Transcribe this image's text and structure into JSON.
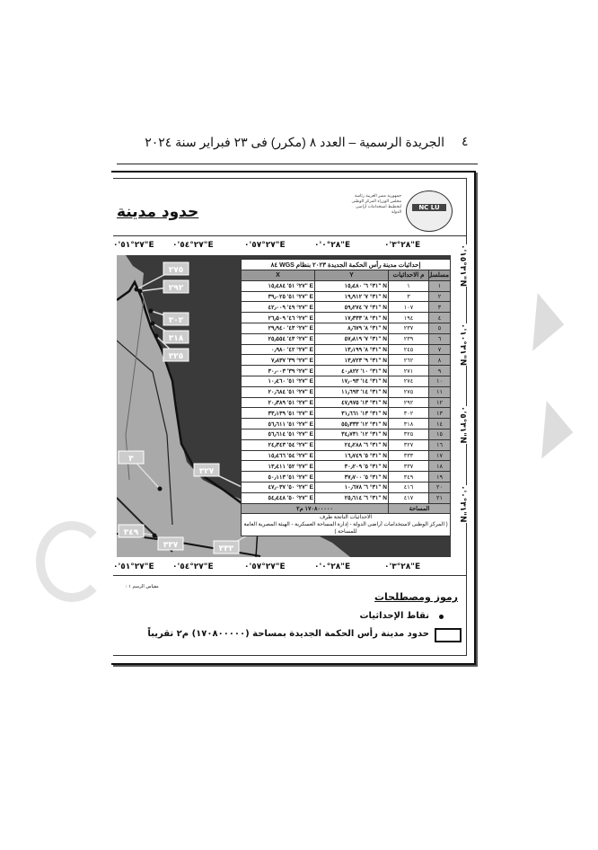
{
  "header": {
    "page_number": "٤",
    "title": "الجريدة الرسمية – العدد ٨ (مكرر) فى ٢٣ فبراير سنة ٢٠٢٤"
  },
  "map": {
    "title": "حدود مدينة",
    "agency_text": "جمهورية مصر العربية رئاسة مجلس الوزراء المركز الوطنى لتخطيط استخدامات أراضى الدولة",
    "logo_text": "NC LU",
    "longitude_labels": [
      "٢٧°٥١'٠\"E",
      "٢٧°٥٤'٠\"E",
      "٢٧°٥٧'٠\"E",
      "٢٨°٠'٠\"E",
      "٢٨°٣'٠\"E"
    ],
    "latitude_labels": [
      "٣١°١٥'٠\"N",
      "٣١°١٠'٠\"N",
      "٣١°٥'٠\"N",
      "٣١°٠'٠\"N"
    ],
    "point_labels": [
      "٢٧٥",
      "٢٩٢",
      "٣٠٢",
      "٣١٨",
      "٣٢٥",
      "٣",
      "٣٢٧",
      "٣٤٩",
      "٣٣٧",
      "٣٣٣"
    ],
    "colors": {
      "sea": "#3a3a3a",
      "land": "#a9a9a9",
      "boundary": "#111111"
    }
  },
  "table": {
    "caption": "إحداثيات مدينة رأس الحكمة الجديدة ٢٠٢٣ بنظام WGS ٨٤",
    "headers": [
      "مسلسل",
      "م الاحداثيات",
      "Y",
      "X"
    ],
    "rows": [
      [
        "١",
        "١",
        "٣١° ٦' ١٥٫٤٨٠\" N",
        "٢٧° ٥١' ١٥٫٤٨٤\" E"
      ],
      [
        "٢",
        "٣",
        "٣١° ٧' ١٩٫٩١٢\" N",
        "٢٧° ٥١' ٣٩٫٠٢٥\" E"
      ],
      [
        "٣",
        "١٠٧",
        "٣١° ٧' ٥٩٫٢٧٤\" N",
        "٢٧° ٤٩' ٤٢٫٠٠٩\" E"
      ],
      [
        "٤",
        "١٩٤",
        "٣١° ٨' ١٧٫٣٣٣\" N",
        "٢٧° ٤٦' ٢٦٫٥٠٩\" E"
      ],
      [
        "٥",
        "٢٣٧",
        "٣١° ٨' ٨٫٦٧٩\" N",
        "٢٧° ٤٣' ٢٩٫٩٤٠\" E"
      ],
      [
        "٦",
        "٢٣٩",
        "٣١° ٧' ٥٧٫٨١٩\" N",
        "٢٧° ٤٣' ٢٥٫٥٥٤\" E"
      ],
      [
        "٧",
        "٢٤٥",
        "٣١° ٨' ١٣٫١٩٩\" N",
        "٢٧° ٤٢' ٠٫٩٨٠\" E"
      ],
      [
        "٨",
        "٢٦٢",
        "٣١° ٩' ١٣٫٧٢٣\" N",
        "٢٧° ٣٩' ٧٫٨٣٧\" E"
      ],
      [
        "٩",
        "٢٧١",
        "٣١° ١٠' ٤٠٫٨٢٢\" N",
        "٢٧° ٣٩' ٣٠٫٠٠٣\" E"
      ],
      [
        "١٠",
        "٢٧٤",
        "٣١° ١٤' ١٧٫٠٩٣\" N",
        "٢٧° ٥١' ١٠٫٤٦٠\" E"
      ],
      [
        "١١",
        "٢٧٥",
        "٣١° ١٤' ١١٫٦٩٣\" N",
        "٢٧° ٥١' ٢٠٫٦٨٤\" E"
      ],
      [
        "١٢",
        "٢٩٢",
        "٣١° ١٣' ٤٧٫٩٧٥\" N",
        "٢٧° ٥١' ٢٠٫٣٨٩\" E"
      ],
      [
        "١٣",
        "٣٠٢",
        "٣١° ١٣' ٣١٫٦٦١\" N",
        "٢٧° ٥١' ٣٣٫١٣٩\" E"
      ],
      [
        "١٤",
        "٣١٨",
        "٣١° ١٢' ٥٥٫٣٣٣\" N",
        "٢٧° ٥١' ٥٦٫٦١١\" E"
      ],
      [
        "١٥",
        "٣٢٥",
        "٣١° ١٢' ٣٤٫٧٣١\" N",
        "٢٧° ٥١' ٥٦٫٦١٤\" E"
      ],
      [
        "١٦",
        "٣٢٧",
        "٣١° ٦' ٢٤٫٢٨٨\" N",
        "٢٧° ٥٤' ٢٤٫٣٤٣\" E"
      ],
      [
        "١٧",
        "٣٣٣",
        "٣١° ٥' ١٦٫٧٤٩\" N",
        "٢٧° ٥٤' ١٥٫٤٦٦\" E"
      ],
      [
        "١٨",
        "٣٣٧",
        "٣١° ٥' ٣٠٫٢٠٩\" N",
        "٢٧° ٥٢' ١٣٫٤١١\" E"
      ],
      [
        "١٩",
        "٣٤٩",
        "٣١° ٥' ٣٧٫٧٠٠\" N",
        "٢٧° ٥١' ٥٠٫١١٣\" E"
      ],
      [
        "٢٠",
        "٤١٦",
        "٣١° ٦' ١٠٫٦٧٨\" N",
        "٢٧° ٥٠' ٤٧٫٠٣٧\" E"
      ],
      [
        "٢١",
        "٤١٧",
        "٣١° ٦' ٢٥٫٦١٤\" N",
        "٢٧° ٥٠' ٥٤٫٤٤٨\" E"
      ]
    ],
    "area_label": "المساحة",
    "area_value": "١٧٠٨٠٠٠٠٠ م٢",
    "footer_1": "الاحداثيات الناتجة طرف",
    "footer_2": "( المركز الوطنى لاستخدامات أراضى الدولة - إدارة المساحة العسكرية - الهيئة المصرية العامة للمساحة )"
  },
  "legend": {
    "scale_label": "مقياس الرسم ١ :",
    "title": "رموز ومصطلحات",
    "items": [
      {
        "icon": "dot-icon",
        "label": "نقاط الإحداثيات"
      },
      {
        "icon": "rectangle-outline-icon",
        "label": "حدود مدينة رأس الحكمة الجديدة بمساحة (١٧٠٨٠٠٠٠٠) م٢ تقريباً"
      }
    ]
  }
}
